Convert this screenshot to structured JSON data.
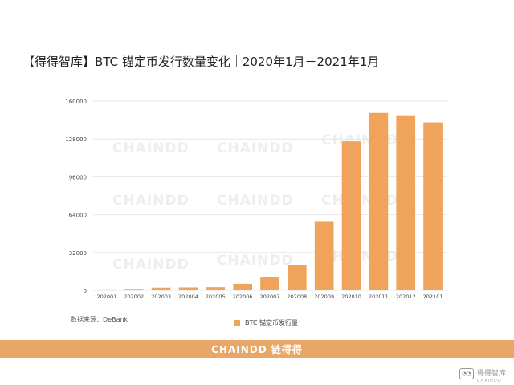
{
  "chart_data": {
    "type": "bar",
    "title": "【得得智库】BTC 锚定币发行数量变化｜2020年1月－2021年1月",
    "categories": [
      "202001",
      "202002",
      "202003",
      "202004",
      "202005",
      "202006",
      "202007",
      "202008",
      "202009",
      "202010",
      "202011",
      "202012",
      "202101"
    ],
    "series": [
      {
        "name": "BTC 锚定币发行量",
        "values": [
          800,
          1200,
          2200,
          2400,
          2600,
          5500,
          11500,
          21000,
          58000,
          126000,
          150000,
          148000,
          142000
        ]
      }
    ],
    "yticks": [
      "0",
      "32000",
      "64000",
      "96000",
      "128000",
      "160000"
    ],
    "ylim": [
      0,
      160000
    ],
    "xlabel": "",
    "ylabel": "",
    "legend": "bottom-center",
    "grid": true,
    "bar_color": "#f0a35a"
  },
  "source": "数据来源：DeBank",
  "footer": {
    "brand": "CHAINDD 链得得"
  },
  "watermark": {
    "label": "得得智库",
    "sub": "CHAINDD"
  },
  "bg_watermark": "CHAINDD"
}
